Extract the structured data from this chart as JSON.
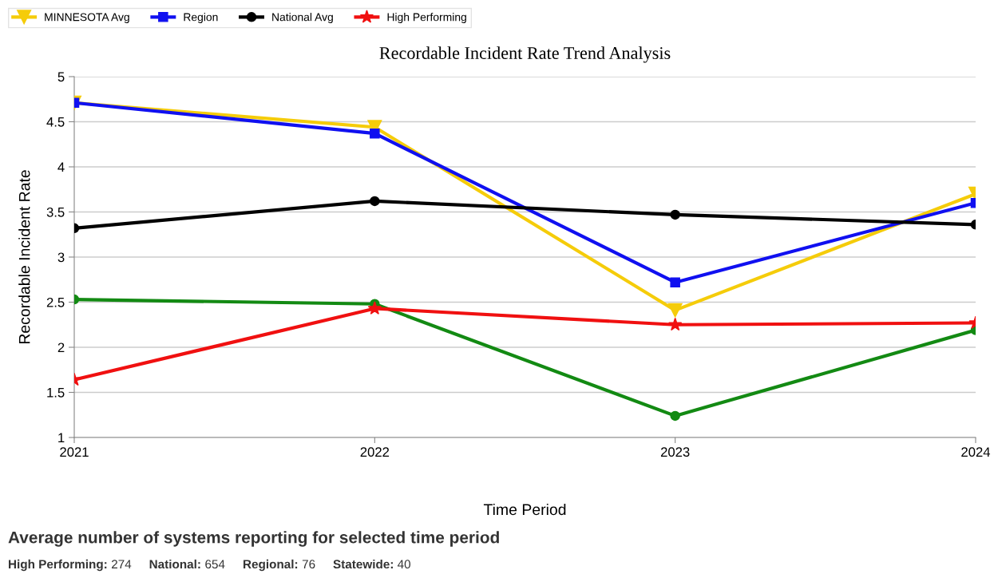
{
  "chart_data": {
    "type": "line",
    "title": "Recordable Incident Rate Trend Analysis",
    "xlabel": "Time Period",
    "ylabel": "Recordable Incident Rate",
    "categories": [
      "2021",
      "2022",
      "2023",
      "2024"
    ],
    "series": [
      {
        "color": "#138a13",
        "marker": "circle",
        "values": [
          2.53,
          2.48,
          1.24,
          2.19
        ]
      },
      {
        "name": "MINNESOTA Avg",
        "color": "#f5cc0a",
        "marker": "triangle",
        "values": [
          4.71,
          4.44,
          2.41,
          3.7
        ]
      },
      {
        "name": "Region",
        "color": "#1010f0",
        "marker": "square",
        "values": [
          4.71,
          4.37,
          2.72,
          3.6
        ]
      },
      {
        "name": "National Avg",
        "color": "#000000",
        "marker": "circle",
        "values": [
          3.32,
          3.62,
          3.47,
          3.36
        ]
      },
      {
        "name": "High Performing",
        "color": "#f01010",
        "marker": "star",
        "values": [
          1.64,
          2.43,
          2.25,
          2.27
        ]
      }
    ],
    "ylim": [
      1,
      5
    ],
    "yticks": [
      1,
      1.5,
      2,
      2.5,
      3,
      3.5,
      4,
      4.5,
      5
    ],
    "grid": "y",
    "legend": "top left",
    "line_style": "solid",
    "annotations": [
      "Average number of systems reporting for selected time period",
      "High Performing: 274",
      "National: 654",
      "Regional: 76",
      "Statewide: 40"
    ]
  }
}
